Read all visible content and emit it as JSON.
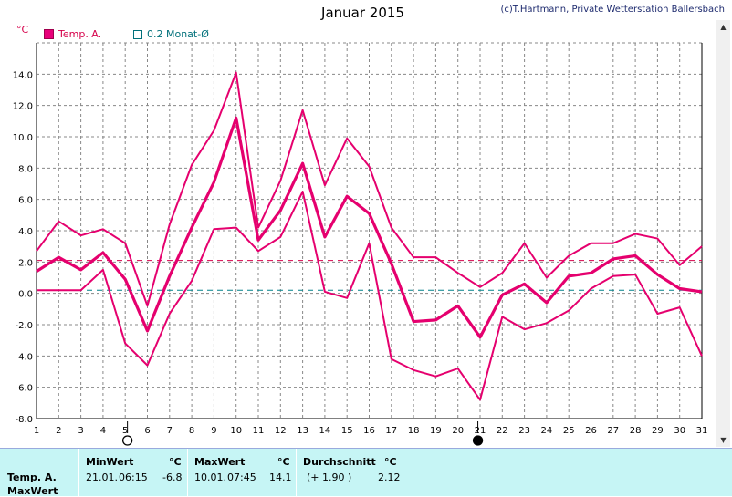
{
  "header": {
    "title": "Januar 2015",
    "copyright": "(c)T.Hartmann, Private Wetterstation Ballersbach"
  },
  "legend": {
    "temp": "Temp. A.",
    "avg": "0.2 Monat-Ø"
  },
  "colors": {
    "series": "#e5006e",
    "monthly_avg_line": "#00808a",
    "max_avg_line": "#d6004a",
    "grid": "#888888",
    "stats_bg": "#c6f5f5"
  },
  "chart_data": {
    "type": "line",
    "unit": "°C",
    "x": [
      1,
      2,
      3,
      4,
      5,
      6,
      7,
      8,
      9,
      10,
      11,
      12,
      13,
      14,
      15,
      16,
      17,
      18,
      19,
      20,
      21,
      22,
      23,
      24,
      25,
      26,
      27,
      28,
      29,
      30,
      31
    ],
    "xlim": [
      1,
      31
    ],
    "ylim": [
      -8,
      16
    ],
    "yticks": [
      "-8.0",
      "-6.0",
      "-4.0",
      "-2.0",
      "0.0",
      "2.0",
      "4.0",
      "6.0",
      "8.0",
      "10.0",
      "12.0",
      "14.0"
    ],
    "grid": true,
    "series": [
      {
        "role": "max",
        "values": [
          2.7,
          4.6,
          3.7,
          4.1,
          3.2,
          -0.8,
          4.4,
          8.2,
          10.4,
          14.1,
          4.2,
          7.2,
          11.7,
          6.9,
          9.9,
          8.1,
          4.2,
          2.3,
          2.3,
          1.3,
          0.4,
          1.3,
          3.2,
          1.0,
          2.4,
          3.2,
          3.2,
          3.8,
          3.5,
          1.8,
          3.0
        ]
      },
      {
        "role": "avg",
        "values": [
          1.4,
          2.3,
          1.5,
          2.6,
          0.9,
          -2.4,
          1.1,
          4.2,
          7.1,
          11.2,
          3.4,
          5.3,
          8.3,
          3.6,
          6.2,
          5.1,
          1.9,
          -1.8,
          -1.7,
          -0.8,
          -2.8,
          -0.1,
          0.6,
          -0.6,
          1.1,
          1.3,
          2.2,
          2.4,
          1.2,
          0.3,
          0.1
        ]
      },
      {
        "role": "min",
        "values": [
          0.2,
          0.2,
          0.2,
          1.5,
          -3.2,
          -4.6,
          -1.3,
          0.8,
          4.1,
          4.2,
          2.7,
          3.6,
          6.5,
          0.1,
          -0.3,
          3.2,
          -4.2,
          -4.9,
          -5.3,
          -4.8,
          -6.8,
          -1.5,
          -2.3,
          -1.9,
          -1.1,
          0.3,
          1.1,
          1.2,
          -1.3,
          -0.9,
          -4.0
        ]
      }
    ],
    "reference_lines": {
      "monthly_avg": 0.2,
      "max_avg": 2.1
    },
    "moon_phases": [
      {
        "day": 5.1,
        "phase": "full"
      },
      {
        "day": 20.9,
        "phase": "new"
      }
    ]
  },
  "stats": {
    "row_label_1": "Temp. A.",
    "row_label_2": "MaxWert",
    "min": {
      "header": "MinWert",
      "unit": "°C",
      "date": "21.01.",
      "time": "06:15",
      "value": "-6.8"
    },
    "max": {
      "header": "MaxWert",
      "unit": "°C",
      "date": "10.01.",
      "time": "07:45",
      "value": "14.1"
    },
    "avg": {
      "header": "Durchschnitt",
      "unit": "°C",
      "delta": "(+ 1.90 )",
      "value": "2.12"
    }
  }
}
